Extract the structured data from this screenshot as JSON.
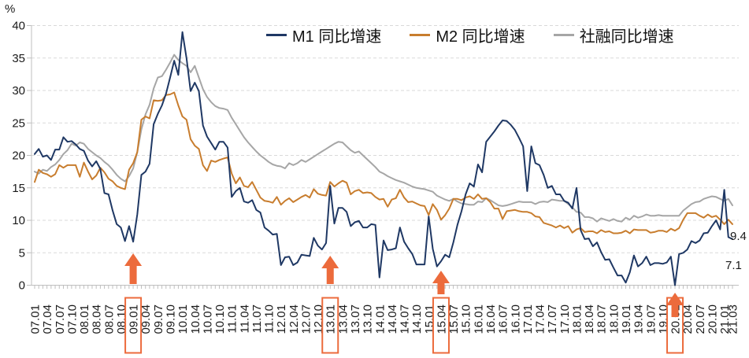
{
  "chart_data": {
    "type": "line",
    "title": "",
    "ylabel": "%",
    "ylim": [
      0,
      40
    ],
    "yticks": [
      0,
      5,
      10,
      15,
      20,
      25,
      30,
      35,
      40
    ],
    "grid": "horizontal-dashed",
    "legend_position": "top",
    "x_frequency": "monthly",
    "x_start": "07.01",
    "x_end": "21.03",
    "x_tick_labels": [
      "07.01",
      "07.04",
      "07.07",
      "07.10",
      "08.01",
      "08.04",
      "08.07",
      "08.10",
      "09.01",
      "09.04",
      "09.07",
      "09.10",
      "10.01",
      "10.04",
      "10.07",
      "10.10",
      "11.01",
      "11.04",
      "11.07",
      "11.10",
      "12.01",
      "12.04",
      "12.07",
      "12.10",
      "13.01",
      "13.04",
      "13.07",
      "13.10",
      "14.01",
      "14.04",
      "14.07",
      "14.10",
      "15.01",
      "15.04",
      "15.07",
      "15.10",
      "16.01",
      "16.04",
      "16.07",
      "16.10",
      "17.01",
      "17.04",
      "17.07",
      "17.10",
      "18.01",
      "18.04",
      "18.07",
      "18.10",
      "19.01",
      "19.04",
      "19.07",
      "19.10",
      "20.01",
      "20.04",
      "20.07",
      "20.10",
      "21.01",
      "21.03"
    ],
    "highlighted_x_labels": [
      "09.01",
      "13.01",
      "15.04",
      "20.01"
    ],
    "arrow_annotations": [
      "09.01",
      "13.01",
      "15.04",
      "20.01"
    ],
    "end_labels": [
      {
        "text": "9.4"
      },
      {
        "text": "7.1"
      }
    ],
    "series": [
      {
        "name": "M1 同比增速",
        "color": "#1F3864",
        "values": [
          20.2,
          21.0,
          19.8,
          20.0,
          19.3,
          20.9,
          20.9,
          22.8,
          22.1,
          22.2,
          21.7,
          21.0,
          20.7,
          19.2,
          18.3,
          19.1,
          17.9,
          14.2,
          14.0,
          11.5,
          9.4,
          8.9,
          6.8,
          9.1,
          6.7,
          10.9,
          17.0,
          17.5,
          18.7,
          24.8,
          26.4,
          27.7,
          29.5,
          32.0,
          34.6,
          32.4,
          39.0,
          35.0,
          29.9,
          31.2,
          29.9,
          24.6,
          22.9,
          21.9,
          20.9,
          22.1,
          22.1,
          21.2,
          13.6,
          14.5,
          15.0,
          12.9,
          12.7,
          13.1,
          11.6,
          11.2,
          8.9,
          8.4,
          7.8,
          7.9,
          3.1,
          4.3,
          4.4,
          3.1,
          3.5,
          4.7,
          4.6,
          4.5,
          7.3,
          6.1,
          5.5,
          6.5,
          15.3,
          9.5,
          11.9,
          11.9,
          11.3,
          9.1,
          9.7,
          9.9,
          8.9,
          8.9,
          9.4,
          9.3,
          1.2,
          6.9,
          5.4,
          5.5,
          5.7,
          8.9,
          6.7,
          5.7,
          4.8,
          3.2,
          3.2,
          3.2,
          10.6,
          5.6,
          2.9,
          3.7,
          4.7,
          4.3,
          6.6,
          9.3,
          11.4,
          14.0,
          15.7,
          15.2,
          18.6,
          17.4,
          22.1,
          22.9,
          23.7,
          24.6,
          25.4,
          25.3,
          24.7,
          23.9,
          22.7,
          21.4,
          14.5,
          21.4,
          18.8,
          18.5,
          17.0,
          15.0,
          15.3,
          14.0,
          14.0,
          13.0,
          12.7,
          11.8,
          15.0,
          8.5,
          7.1,
          7.2,
          6.0,
          6.6,
          5.1,
          3.9,
          4.0,
          2.7,
          1.5,
          1.5,
          0.4,
          2.0,
          4.6,
          2.9,
          3.4,
          4.4,
          3.1,
          3.4,
          3.4,
          3.3,
          3.5,
          4.4,
          0.0,
          4.8,
          5.0,
          5.5,
          6.8,
          6.5,
          6.9,
          8.0,
          8.1,
          9.1,
          10.0,
          8.6,
          14.7,
          7.4,
          7.1
        ]
      },
      {
        "name": "M2 同比增速",
        "color": "#C87D2E",
        "values": [
          15.9,
          17.8,
          17.3,
          17.1,
          16.7,
          17.1,
          18.5,
          18.1,
          18.5,
          18.5,
          18.5,
          16.7,
          18.9,
          17.5,
          16.3,
          16.9,
          18.1,
          17.4,
          16.4,
          16.0,
          15.3,
          15.0,
          14.8,
          17.8,
          18.8,
          20.5,
          25.5,
          26.0,
          25.7,
          28.5,
          28.4,
          28.5,
          29.3,
          29.4,
          29.7,
          27.7,
          26.0,
          25.5,
          22.5,
          21.5,
          21.0,
          18.5,
          17.6,
          19.2,
          19.0,
          19.3,
          19.5,
          19.7,
          17.2,
          15.7,
          16.6,
          15.3,
          15.1,
          15.9,
          14.7,
          13.5,
          13.0,
          12.9,
          12.7,
          13.6,
          12.4,
          13.0,
          13.4,
          12.8,
          13.2,
          13.6,
          13.9,
          13.5,
          14.8,
          14.1,
          13.9,
          13.8,
          15.9,
          15.2,
          15.7,
          16.1,
          15.8,
          14.0,
          14.5,
          14.7,
          14.2,
          14.3,
          14.2,
          13.6,
          13.2,
          13.3,
          12.1,
          13.2,
          13.4,
          14.7,
          13.5,
          12.8,
          12.9,
          12.6,
          12.3,
          12.2,
          10.8,
          12.5,
          11.6,
          10.1,
          10.8,
          11.8,
          13.3,
          13.3,
          13.1,
          13.5,
          13.7,
          13.3,
          14.0,
          13.3,
          13.4,
          12.8,
          11.8,
          11.8,
          10.2,
          11.4,
          11.5,
          11.6,
          11.4,
          11.3,
          11.3,
          11.1,
          10.6,
          10.5,
          9.6,
          9.4,
          9.2,
          8.9,
          9.2,
          8.8,
          9.1,
          8.1,
          8.6,
          8.8,
          8.2,
          8.3,
          8.3,
          8.0,
          8.5,
          8.2,
          8.3,
          8.0,
          8.0,
          8.1,
          8.4,
          8.0,
          8.6,
          8.5,
          8.5,
          8.5,
          8.1,
          8.2,
          8.4,
          8.4,
          8.2,
          8.7,
          8.4,
          8.8,
          10.1,
          11.1,
          11.1,
          11.1,
          10.7,
          10.4,
          10.9,
          10.5,
          10.7,
          10.1,
          9.4,
          10.1,
          9.4
        ]
      },
      {
        "name": "社融同比增速",
        "color": "#A6A6A6",
        "values": [
          17.5,
          17.2,
          17.8,
          17.6,
          18.2,
          18.6,
          19.3,
          20.2,
          20.8,
          21.8,
          21.5,
          22.0,
          21.8,
          21.0,
          20.5,
          20.0,
          19.6,
          19.0,
          18.5,
          17.8,
          17.0,
          16.4,
          16.0,
          16.8,
          18.0,
          20.5,
          24.0,
          26.3,
          27.8,
          30.3,
          32.0,
          32.2,
          33.2,
          34.3,
          35.5,
          34.7,
          34.2,
          33.8,
          32.8,
          33.8,
          32.0,
          30.2,
          29.0,
          28.2,
          27.6,
          27.3,
          27.2,
          27.0,
          25.8,
          24.8,
          23.8,
          22.8,
          22.0,
          21.3,
          20.6,
          20.0,
          19.5,
          19.0,
          18.6,
          18.4,
          18.3,
          18.0,
          18.8,
          18.5,
          18.8,
          19.3,
          19.0,
          19.4,
          19.8,
          20.2,
          20.6,
          21.0,
          21.4,
          21.8,
          22.1,
          22.0,
          21.4,
          20.8,
          20.4,
          20.6,
          20.0,
          19.4,
          18.8,
          18.2,
          17.5,
          17.2,
          16.8,
          16.5,
          16.2,
          16.0,
          15.8,
          15.5,
          15.2,
          15.0,
          14.9,
          14.8,
          14.6,
          14.4,
          13.8,
          13.5,
          13.2,
          13.0,
          13.3,
          12.9,
          12.6,
          12.5,
          12.4,
          12.4,
          12.9,
          12.8,
          13.4,
          13.1,
          12.7,
          12.3,
          12.2,
          12.3,
          12.5,
          12.7,
          12.9,
          12.8,
          12.8,
          12.8,
          12.5,
          12.8,
          12.9,
          12.8,
          13.2,
          13.1,
          13.0,
          13.0,
          12.5,
          12.0,
          11.3,
          11.2,
          10.5,
          10.5,
          10.3,
          9.8,
          10.3,
          10.1,
          9.9,
          10.2,
          9.9,
          9.8,
          10.4,
          10.1,
          10.7,
          10.4,
          10.6,
          10.9,
          10.7,
          10.7,
          10.8,
          10.7,
          10.7,
          10.7,
          10.7,
          10.7,
          11.5,
          12.0,
          12.5,
          12.8,
          12.9,
          13.3,
          13.5,
          13.7,
          13.6,
          13.3,
          13.0,
          13.3,
          12.3
        ]
      }
    ],
    "annotation_color": "#EC6B3C"
  }
}
